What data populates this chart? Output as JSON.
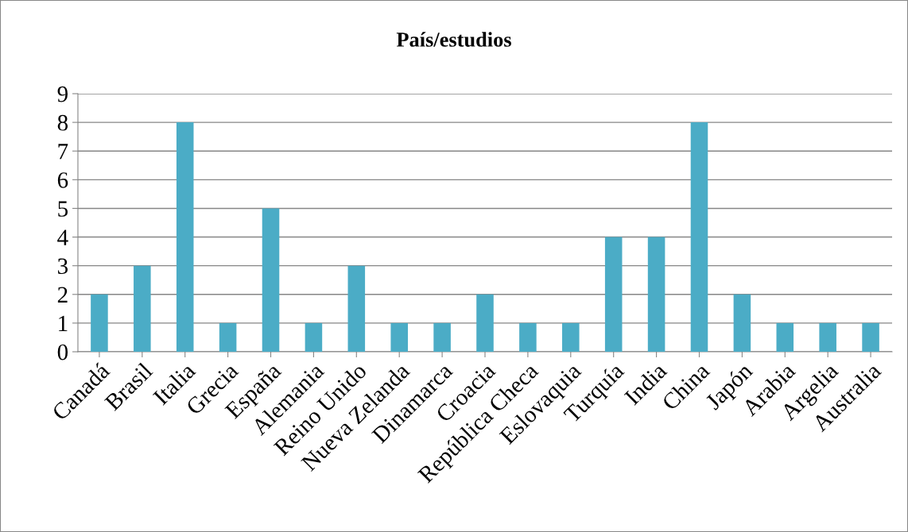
{
  "chart_data": {
    "type": "bar",
    "title": "País/estudios",
    "categories": [
      "Canadá",
      "Brasil",
      "Italia",
      "Grecia",
      "España",
      "Alemania",
      "Reino Unido",
      "Nueva Zelanda",
      "Dinamarca",
      "Croacia",
      "República Checa",
      "Eslovaquia",
      "Turquía",
      "India",
      "China",
      "Japón",
      "Arabia",
      "Argelia",
      "Australia"
    ],
    "values": [
      2,
      3,
      8,
      1,
      5,
      1,
      3,
      1,
      1,
      2,
      1,
      1,
      4,
      4,
      8,
      2,
      1,
      1,
      1
    ],
    "color": "#4bacc6",
    "ylim": [
      0,
      9
    ],
    "yticks": [
      0,
      1,
      2,
      3,
      4,
      5,
      6,
      7,
      8,
      9
    ],
    "grid": "y",
    "legend": false
  }
}
